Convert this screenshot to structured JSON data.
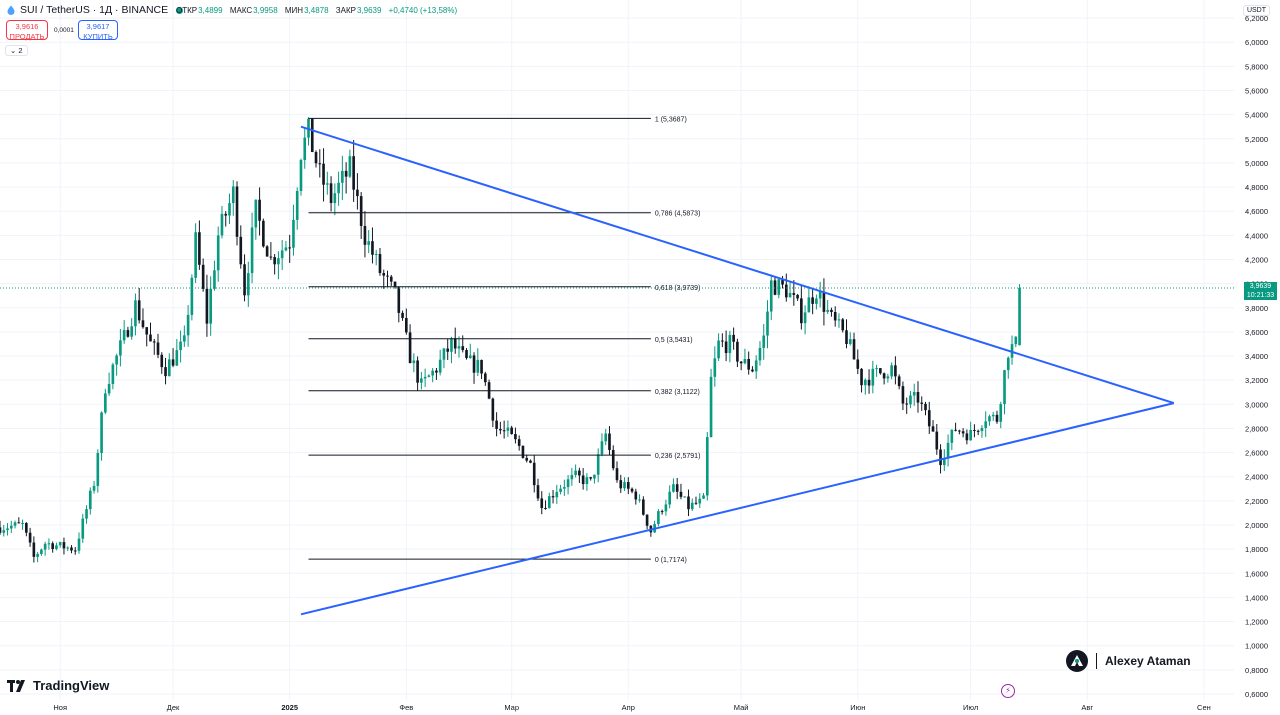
{
  "header": {
    "title": "SUI / TetherUS · 1Д · BINANCE",
    "ohlc": [
      {
        "key": "ОТКР",
        "value": "3,4899"
      },
      {
        "key": "МАКС",
        "value": "3,9958"
      },
      {
        "key": "МИН",
        "value": "3,4878"
      },
      {
        "key": "ЗАКР",
        "value": "3,9639"
      }
    ],
    "change": "+0,4740 (+13,58%)"
  },
  "trade": {
    "sell_price": "3,9616",
    "sell_label": "ПРОДАТЬ",
    "spread": "0,0001",
    "buy_price": "3,9617",
    "buy_label": "КУПИТЬ"
  },
  "indicators_toggle": "⌄ 2",
  "currency": "USDT",
  "price_tag": {
    "price": "3,9639",
    "time": "10:21:33"
  },
  "branding": {
    "logo_text": "TradingView",
    "author": "Alexey Ataman"
  },
  "colors": {
    "up": "#089981",
    "down": "#131722",
    "trendline": "#2962ff",
    "fib": "#131722"
  },
  "chart_data": {
    "type": "candlestick",
    "symbol": "SUI / TetherUS",
    "interval": "1Д",
    "exchange": "BINANCE",
    "y_ticks": [
      "6,2000",
      "6,0000",
      "5,8000",
      "5,6000",
      "5,4000",
      "5,2000",
      "5,0000",
      "4,8000",
      "4,6000",
      "4,4000",
      "4,2000",
      "4,0000",
      "3,8000",
      "3,6000",
      "3,4000",
      "3,2000",
      "3,0000",
      "2,8000",
      "2,6000",
      "2,4000",
      "2,2000",
      "2,0000",
      "1,8000",
      "1,6000",
      "1,4000",
      "1,2000",
      "1,0000",
      "0,8000",
      "0,6000"
    ],
    "ylim": [
      0.55,
      6.35
    ],
    "x_ticks": [
      {
        "label": "Ноя",
        "date": "2024-11-01"
      },
      {
        "label": "Дек",
        "date": "2024-12-01"
      },
      {
        "label": "2025",
        "date": "2025-01-01"
      },
      {
        "label": "Фев",
        "date": "2025-02-01"
      },
      {
        "label": "Мар",
        "date": "2025-03-01"
      },
      {
        "label": "Апр",
        "date": "2025-04-01"
      },
      {
        "label": "Май",
        "date": "2025-05-01"
      },
      {
        "label": "Июн",
        "date": "2025-06-01"
      },
      {
        "label": "Июл",
        "date": "2025-07-01"
      },
      {
        "label": "Авг",
        "date": "2025-08-01"
      },
      {
        "label": "Сен",
        "date": "2025-09-01"
      }
    ],
    "xlim": [
      "2024-10-16",
      "2025-09-09"
    ],
    "last_price": 3.9639,
    "fibonacci": {
      "start_date": "2025-01-06",
      "end_date": "2025-04-07",
      "levels": [
        {
          "label": "1 (5,3687)",
          "value": 5.3687
        },
        {
          "label": "0,786 (4,5873)",
          "value": 4.5873
        },
        {
          "label": "0,618 (3,9739)",
          "value": 3.9739
        },
        {
          "label": "0,5 (3,5431)",
          "value": 3.5431
        },
        {
          "label": "0,382 (3,1122)",
          "value": 3.1122
        },
        {
          "label": "0,236 (2,5791)",
          "value": 2.5791
        },
        {
          "label": "0 (1,7174)",
          "value": 1.7174
        }
      ]
    },
    "trendlines": [
      {
        "from": {
          "date": "2025-01-04",
          "value": 5.3
        },
        "to": {
          "date": "2025-08-24",
          "value": 3.01
        }
      },
      {
        "from": {
          "date": "2025-01-04",
          "value": 1.26
        },
        "to": {
          "date": "2025-08-24",
          "value": 3.01
        }
      }
    ],
    "anchors": [
      {
        "date": "2024-10-16",
        "value": 1.98
      },
      {
        "date": "2024-10-22",
        "value": 2.0
      },
      {
        "date": "2024-10-25",
        "value": 1.73
      },
      {
        "date": "2024-10-28",
        "value": 1.85
      },
      {
        "date": "2024-11-05",
        "value": 1.8
      },
      {
        "date": "2024-11-10",
        "value": 2.35
      },
      {
        "date": "2024-11-13",
        "value": 3.15
      },
      {
        "date": "2024-11-18",
        "value": 3.55
      },
      {
        "date": "2024-11-21",
        "value": 3.82
      },
      {
        "date": "2024-11-25",
        "value": 3.5
      },
      {
        "date": "2024-11-29",
        "value": 3.3
      },
      {
        "date": "2024-12-04",
        "value": 3.5
      },
      {
        "date": "2024-12-07",
        "value": 4.35
      },
      {
        "date": "2024-12-10",
        "value": 3.7
      },
      {
        "date": "2024-12-13",
        "value": 4.4
      },
      {
        "date": "2024-12-17",
        "value": 4.75
      },
      {
        "date": "2024-12-20",
        "value": 3.95
      },
      {
        "date": "2024-12-23",
        "value": 4.6
      },
      {
        "date": "2024-12-27",
        "value": 4.2
      },
      {
        "date": "2025-01-01",
        "value": 4.35
      },
      {
        "date": "2025-01-04",
        "value": 5.1
      },
      {
        "date": "2025-01-06",
        "value": 5.25
      },
      {
        "date": "2025-01-09",
        "value": 4.9
      },
      {
        "date": "2025-01-12",
        "value": 4.7
      },
      {
        "date": "2025-01-17",
        "value": 4.95
      },
      {
        "date": "2025-01-21",
        "value": 4.4
      },
      {
        "date": "2025-01-25",
        "value": 4.1
      },
      {
        "date": "2025-01-29",
        "value": 3.9
      },
      {
        "date": "2025-02-02",
        "value": 3.4
      },
      {
        "date": "2025-02-05",
        "value": 3.15
      },
      {
        "date": "2025-02-09",
        "value": 3.3
      },
      {
        "date": "2025-02-13",
        "value": 3.5
      },
      {
        "date": "2025-02-17",
        "value": 3.35
      },
      {
        "date": "2025-02-21",
        "value": 3.3
      },
      {
        "date": "2025-02-25",
        "value": 2.8
      },
      {
        "date": "2025-02-28",
        "value": 2.75
      },
      {
        "date": "2025-03-03",
        "value": 2.65
      },
      {
        "date": "2025-03-06",
        "value": 2.5
      },
      {
        "date": "2025-03-09",
        "value": 2.15
      },
      {
        "date": "2025-03-13",
        "value": 2.3
      },
      {
        "date": "2025-03-18",
        "value": 2.4
      },
      {
        "date": "2025-03-22",
        "value": 2.35
      },
      {
        "date": "2025-03-26",
        "value": 2.75
      },
      {
        "date": "2025-03-29",
        "value": 2.35
      },
      {
        "date": "2025-04-03",
        "value": 2.25
      },
      {
        "date": "2025-04-07",
        "value": 1.95
      },
      {
        "date": "2025-04-10",
        "value": 2.15
      },
      {
        "date": "2025-04-13",
        "value": 2.3
      },
      {
        "date": "2025-04-17",
        "value": 2.15
      },
      {
        "date": "2025-04-21",
        "value": 2.2
      },
      {
        "date": "2025-04-23",
        "value": 3.2
      },
      {
        "date": "2025-04-25",
        "value": 3.5
      },
      {
        "date": "2025-04-28",
        "value": 3.5
      },
      {
        "date": "2025-05-01",
        "value": 3.35
      },
      {
        "date": "2025-05-04",
        "value": 3.3
      },
      {
        "date": "2025-05-07",
        "value": 3.55
      },
      {
        "date": "2025-05-09",
        "value": 4.0
      },
      {
        "date": "2025-05-13",
        "value": 3.95
      },
      {
        "date": "2025-05-17",
        "value": 3.75
      },
      {
        "date": "2025-05-21",
        "value": 3.95
      },
      {
        "date": "2025-05-25",
        "value": 3.7
      },
      {
        "date": "2025-05-29",
        "value": 3.55
      },
      {
        "date": "2025-06-02",
        "value": 3.2
      },
      {
        "date": "2025-06-06",
        "value": 3.25
      },
      {
        "date": "2025-06-10",
        "value": 3.3
      },
      {
        "date": "2025-06-13",
        "value": 3.0
      },
      {
        "date": "2025-06-17",
        "value": 3.05
      },
      {
        "date": "2025-06-21",
        "value": 2.75
      },
      {
        "date": "2025-06-23",
        "value": 2.55
      },
      {
        "date": "2025-06-27",
        "value": 2.8
      },
      {
        "date": "2025-07-01",
        "value": 2.75
      },
      {
        "date": "2025-07-05",
        "value": 2.9
      },
      {
        "date": "2025-07-08",
        "value": 2.88
      },
      {
        "date": "2025-07-11",
        "value": 3.45
      },
      {
        "date": "2025-07-13",
        "value": 3.49
      },
      {
        "date": "2025-07-14",
        "value": 3.9639
      }
    ]
  }
}
